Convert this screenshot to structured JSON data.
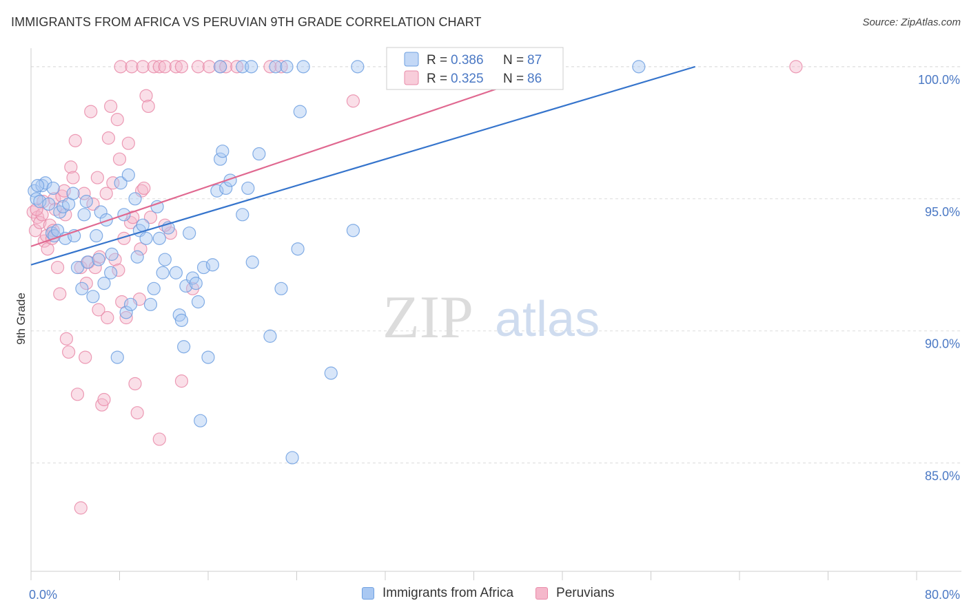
{
  "title": "IMMIGRANTS FROM AFRICA VS PERUVIAN 9TH GRADE CORRELATION CHART",
  "source": "Source: ZipAtlas.com",
  "watermark": {
    "zip": "ZIP",
    "atlas": "atlas"
  },
  "colors": {
    "africa_fill": "#a9c8f2",
    "africa_stroke": "#6d9fe0",
    "africa_line": "#3574cc",
    "peru_fill": "#f5b8cb",
    "peru_stroke": "#e98aa8",
    "peru_line": "#e06890",
    "grid": "#dcdcdc",
    "axis_text": "#4a78c4"
  },
  "legend": [
    {
      "r_label": "R = ",
      "r_value": "0.386",
      "n_label": "N = ",
      "n_value": "87"
    },
    {
      "r_label": "R = ",
      "r_value": "0.325",
      "n_label": "N = ",
      "n_value": "86"
    }
  ],
  "bottom_legend": [
    {
      "label": "Immigrants from Africa"
    },
    {
      "label": "Peruvians"
    }
  ],
  "chart_data": {
    "type": "scatter",
    "title": "IMMIGRANTS FROM AFRICA VS PERUVIAN 9TH GRADE CORRELATION CHART",
    "xlabel": "",
    "ylabel": "9th Grade",
    "xlim": [
      0,
      80
    ],
    "ylim": [
      80.9,
      100.7
    ],
    "x_tick_labels": [
      {
        "value": 0,
        "label": "0.0%"
      },
      {
        "value": 80,
        "label": "80.0%"
      }
    ],
    "y_tick_labels": [
      {
        "value": 100,
        "label": "100.0%"
      },
      {
        "value": 95,
        "label": "95.0%"
      },
      {
        "value": 90,
        "label": "90.0%"
      },
      {
        "value": 85,
        "label": "85.0%"
      }
    ],
    "x_minor_ticks": [
      0,
      8,
      16,
      24,
      32,
      40,
      48,
      56,
      64,
      72,
      80
    ],
    "series": [
      {
        "name": "Immigrants from Africa",
        "r": 0.386,
        "n": 87,
        "trend": {
          "x": [
            0,
            60
          ],
          "y": [
            92.5,
            100.0
          ]
        },
        "points": [
          [
            0.3,
            95.3
          ],
          [
            0.5,
            95.0
          ],
          [
            0.8,
            94.9
          ],
          [
            1.0,
            95.5
          ],
          [
            1.3,
            95.6
          ],
          [
            1.6,
            94.8
          ],
          [
            1.9,
            93.7
          ],
          [
            2.0,
            95.4
          ],
          [
            2.1,
            93.6
          ],
          [
            2.4,
            93.8
          ],
          [
            2.6,
            94.5
          ],
          [
            2.9,
            94.7
          ],
          [
            3.1,
            93.5
          ],
          [
            3.4,
            94.8
          ],
          [
            3.8,
            95.2
          ],
          [
            3.9,
            93.6
          ],
          [
            4.2,
            92.4
          ],
          [
            4.6,
            91.6
          ],
          [
            4.8,
            94.4
          ],
          [
            5.0,
            94.9
          ],
          [
            5.1,
            92.6
          ],
          [
            5.6,
            91.3
          ],
          [
            5.9,
            93.6
          ],
          [
            6.1,
            92.7
          ],
          [
            6.3,
            94.5
          ],
          [
            6.6,
            91.8
          ],
          [
            6.8,
            94.2
          ],
          [
            7.2,
            92.2
          ],
          [
            7.3,
            92.9
          ],
          [
            7.8,
            89.0
          ],
          [
            8.1,
            95.6
          ],
          [
            8.4,
            94.4
          ],
          [
            8.6,
            90.7
          ],
          [
            8.8,
            95.9
          ],
          [
            9.0,
            91.0
          ],
          [
            9.4,
            95.0
          ],
          [
            9.6,
            92.8
          ],
          [
            9.8,
            93.8
          ],
          [
            10.1,
            94.0
          ],
          [
            10.4,
            93.5
          ],
          [
            10.8,
            91.0
          ],
          [
            11.1,
            91.6
          ],
          [
            11.4,
            94.7
          ],
          [
            11.6,
            93.5
          ],
          [
            11.9,
            92.2
          ],
          [
            12.1,
            92.7
          ],
          [
            12.4,
            93.9
          ],
          [
            13.1,
            92.2
          ],
          [
            13.4,
            90.6
          ],
          [
            13.6,
            90.4
          ],
          [
            13.8,
            89.4
          ],
          [
            14.0,
            91.7
          ],
          [
            14.3,
            93.7
          ],
          [
            14.6,
            92.0
          ],
          [
            14.9,
            91.8
          ],
          [
            15.1,
            91.1
          ],
          [
            15.3,
            86.6
          ],
          [
            15.6,
            92.4
          ],
          [
            16.0,
            89.0
          ],
          [
            16.4,
            92.5
          ],
          [
            16.8,
            95.3
          ],
          [
            17.1,
            96.5
          ],
          [
            17.3,
            96.8
          ],
          [
            17.6,
            95.4
          ],
          [
            18.0,
            95.7
          ],
          [
            19.1,
            94.4
          ],
          [
            19.6,
            95.4
          ],
          [
            20.0,
            92.6
          ],
          [
            20.6,
            96.7
          ],
          [
            21.6,
            89.8
          ],
          [
            22.6,
            91.6
          ],
          [
            23.6,
            85.2
          ],
          [
            24.1,
            93.1
          ],
          [
            24.3,
            98.3
          ],
          [
            27.1,
            88.4
          ],
          [
            29.1,
            93.8
          ],
          [
            17.1,
            100.0
          ],
          [
            19.1,
            100.0
          ],
          [
            19.9,
            100.0
          ],
          [
            22.1,
            100.0
          ],
          [
            23.1,
            100.0
          ],
          [
            24.6,
            100.0
          ],
          [
            29.5,
            100.0
          ],
          [
            33.1,
            100.0
          ],
          [
            33.6,
            100.0
          ],
          [
            35.6,
            100.0
          ],
          [
            54.9,
            100.0
          ],
          [
            0.6,
            95.5
          ]
        ]
      },
      {
        "name": "Peruvians",
        "r": 0.325,
        "n": 86,
        "trend": {
          "x": [
            0,
            48
          ],
          "y": [
            93.2,
            100.0
          ]
        },
        "points": [
          [
            0.2,
            94.5
          ],
          [
            0.4,
            93.8
          ],
          [
            0.6,
            94.3
          ],
          [
            0.8,
            94.1
          ],
          [
            1.0,
            94.4
          ],
          [
            1.2,
            93.4
          ],
          [
            1.4,
            93.6
          ],
          [
            1.5,
            93.1
          ],
          [
            1.7,
            94.0
          ],
          [
            1.9,
            93.5
          ],
          [
            2.1,
            95.0
          ],
          [
            2.2,
            94.6
          ],
          [
            2.4,
            92.4
          ],
          [
            2.6,
            91.4
          ],
          [
            2.8,
            95.1
          ],
          [
            3.0,
            95.3
          ],
          [
            3.2,
            89.7
          ],
          [
            3.4,
            89.2
          ],
          [
            3.6,
            96.2
          ],
          [
            3.8,
            95.8
          ],
          [
            4.0,
            97.2
          ],
          [
            4.2,
            87.6
          ],
          [
            4.5,
            92.4
          ],
          [
            4.8,
            95.2
          ],
          [
            5.0,
            91.8
          ],
          [
            5.2,
            92.6
          ],
          [
            5.4,
            98.3
          ],
          [
            5.6,
            94.8
          ],
          [
            5.8,
            92.4
          ],
          [
            6.0,
            95.8
          ],
          [
            6.2,
            92.8
          ],
          [
            6.4,
            87.2
          ],
          [
            6.6,
            87.4
          ],
          [
            6.8,
            95.2
          ],
          [
            7.0,
            97.3
          ],
          [
            7.2,
            98.5
          ],
          [
            7.4,
            95.6
          ],
          [
            7.6,
            92.7
          ],
          [
            7.8,
            98.0
          ],
          [
            8.0,
            96.5
          ],
          [
            8.2,
            91.1
          ],
          [
            8.4,
            93.5
          ],
          [
            8.6,
            90.5
          ],
          [
            8.8,
            97.1
          ],
          [
            9.0,
            94.1
          ],
          [
            9.2,
            94.3
          ],
          [
            9.4,
            88.0
          ],
          [
            9.6,
            86.9
          ],
          [
            9.8,
            91.2
          ],
          [
            10.0,
            95.3
          ],
          [
            10.2,
            95.4
          ],
          [
            10.4,
            98.9
          ],
          [
            10.6,
            98.5
          ],
          [
            10.8,
            94.3
          ],
          [
            11.6,
            85.9
          ],
          [
            12.6,
            93.7
          ],
          [
            13.6,
            88.1
          ],
          [
            14.6,
            91.6
          ],
          [
            29.1,
            98.7
          ],
          [
            8.1,
            100.0
          ],
          [
            9.1,
            100.0
          ],
          [
            10.1,
            100.0
          ],
          [
            11.1,
            100.0
          ],
          [
            11.6,
            100.0
          ],
          [
            12.1,
            100.0
          ],
          [
            13.1,
            100.0
          ],
          [
            13.6,
            100.0
          ],
          [
            15.1,
            100.0
          ],
          [
            16.1,
            100.0
          ],
          [
            17.1,
            100.0
          ],
          [
            17.6,
            100.0
          ],
          [
            18.6,
            100.0
          ],
          [
            21.6,
            100.0
          ],
          [
            22.6,
            100.0
          ],
          [
            69.1,
            100.0
          ],
          [
            6.1,
            90.8
          ],
          [
            6.9,
            90.5
          ],
          [
            2.0,
            93.8
          ],
          [
            0.5,
            94.6
          ],
          [
            1.1,
            94.9
          ],
          [
            3.1,
            94.4
          ],
          [
            4.9,
            89.0
          ],
          [
            7.9,
            92.3
          ],
          [
            9.9,
            93.1
          ],
          [
            12.1,
            94.0
          ],
          [
            4.5,
            83.3
          ]
        ]
      }
    ]
  }
}
